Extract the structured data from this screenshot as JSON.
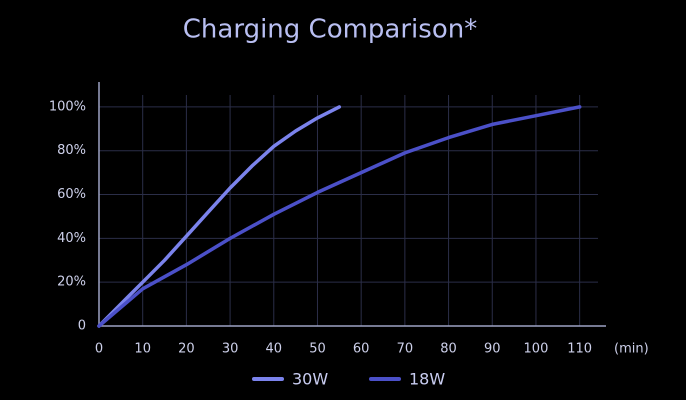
{
  "chart_data": {
    "type": "line",
    "title": "Charging Comparison*",
    "x_label": "(min)",
    "xlim": [
      0,
      115
    ],
    "xticks": [
      0,
      10,
      20,
      30,
      40,
      50,
      60,
      70,
      80,
      90,
      100,
      110
    ],
    "ylim": [
      0,
      110
    ],
    "yticks": [
      0,
      {
        "value": 20,
        "label": "20%"
      },
      {
        "value": 40,
        "label": "40%"
      },
      {
        "value": 60,
        "label": "60%"
      },
      {
        "value": 80,
        "label": "80%"
      },
      {
        "value": 100,
        "label": "100%"
      }
    ],
    "grid": true,
    "series": [
      {
        "name": "30W",
        "color": "#7b83ec",
        "x": [
          0,
          5,
          10,
          15,
          20,
          25,
          30,
          35,
          40,
          45,
          50,
          55
        ],
        "values": [
          0,
          10,
          20,
          30,
          41,
          52,
          63,
          73,
          82,
          89,
          95,
          100
        ]
      },
      {
        "name": "18W",
        "color": "#4b50c8",
        "x": [
          0,
          10,
          20,
          30,
          40,
          50,
          60,
          70,
          80,
          90,
          100,
          110
        ],
        "values": [
          0,
          17,
          28,
          40,
          51,
          61,
          70,
          79,
          86,
          92,
          96,
          100
        ]
      }
    ]
  }
}
